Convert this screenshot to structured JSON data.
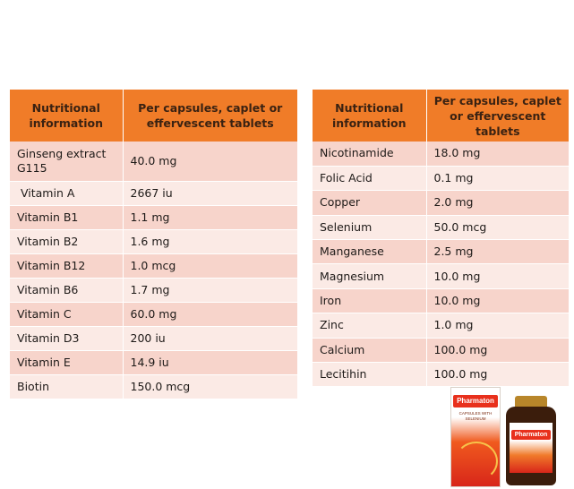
{
  "left_table": {
    "headers": [
      "Nutritional information",
      "Per capsules, caplet or effervescent tablets"
    ],
    "rows": [
      [
        "Ginseng extract G115",
        "40.0 mg"
      ],
      [
        "Vitamin A",
        "2667  iu"
      ],
      [
        "Vitamin B1",
        "1.1 mg"
      ],
      [
        "Vitamin B2",
        "1.6 mg"
      ],
      [
        "Vitamin B12",
        "1.0  mcg"
      ],
      [
        "Vitamin B6",
        "1.7 mg"
      ],
      [
        "Vitamin C",
        "60.0 mg"
      ],
      [
        "Vitamin D3",
        "200  iu"
      ],
      [
        "Vitamin E",
        "14.9 iu"
      ],
      [
        "Biotin",
        "150.0 mcg"
      ]
    ]
  },
  "right_table": {
    "headers": [
      "Nutritional information",
      "Per capsules, caplet or effervescent tablets"
    ],
    "rows": [
      [
        "Nicotinamide",
        "18.0 mg"
      ],
      [
        "Folic Acid",
        "0.1 mg"
      ],
      [
        "Copper",
        "2.0 mg"
      ],
      [
        "Selenium",
        "50.0 mcg"
      ],
      [
        "Manganese",
        "2.5 mg"
      ],
      [
        "Magnesium",
        "10.0 mg"
      ],
      [
        "Iron",
        "10.0 mg"
      ],
      [
        "Zinc",
        "1.0 mg"
      ],
      [
        "Calcium",
        "100.0 mg"
      ],
      [
        "Lecitihin",
        "100.0 mg"
      ]
    ]
  },
  "product": {
    "brand": "Pharmaton",
    "box_subtitle": "CAPSULES WITH SELENIUM"
  },
  "colors": {
    "header": "#f07c28",
    "row_odd": "#f7d4cb",
    "row_even": "#fbeae5"
  }
}
